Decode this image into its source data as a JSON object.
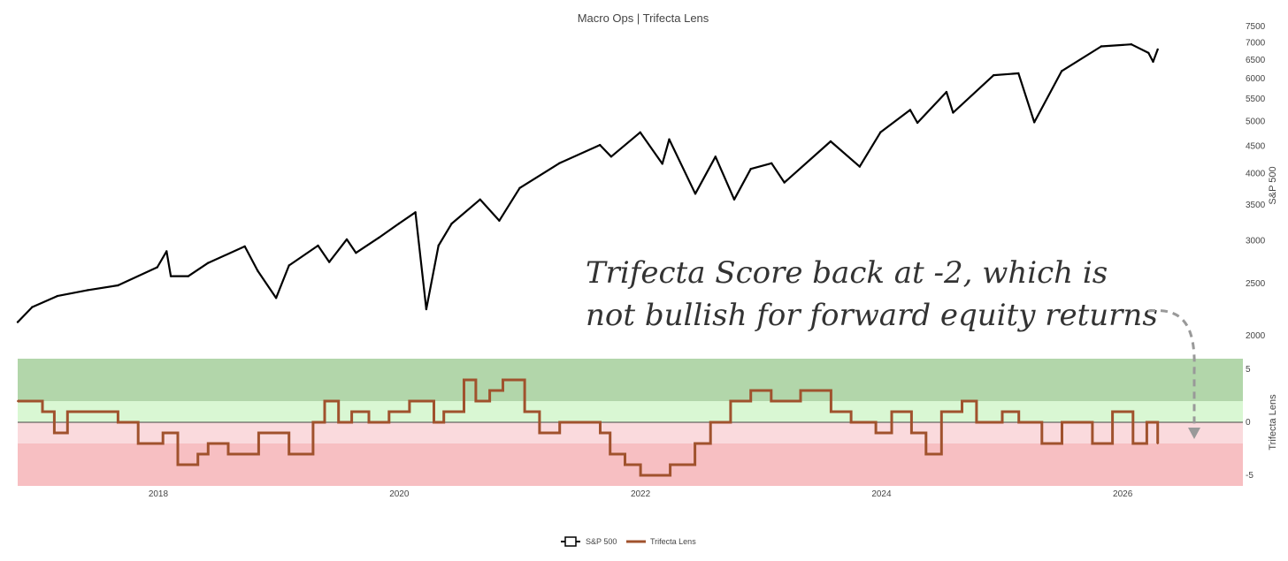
{
  "chart_data": [
    {
      "type": "line",
      "title": "Macro Ops | Trifecta Lens",
      "ylabel": "S&P 500",
      "yscale": "log",
      "ylim": [
        2000,
        7500
      ],
      "y_ticks": [
        2000,
        2500,
        3000,
        3500,
        4000,
        4500,
        5000,
        5500,
        6000,
        6500,
        7000,
        7500
      ],
      "x_ticks": [
        "2018",
        "2020",
        "2022",
        "2024",
        "2026"
      ],
      "xlim": [
        "2016-11-01",
        "2026-12-31"
      ],
      "series": [
        {
          "name": "S&P 500",
          "color": "#000000",
          "points": [
            [
              "2016-11-01",
              2120
            ],
            [
              "2016-12-15",
              2260
            ],
            [
              "2017-03-01",
              2370
            ],
            [
              "2017-06-01",
              2430
            ],
            [
              "2017-09-01",
              2480
            ],
            [
              "2017-12-29",
              2680
            ],
            [
              "2018-01-26",
              2870
            ],
            [
              "2018-02-08",
              2580
            ],
            [
              "2018-04-02",
              2580
            ],
            [
              "2018-06-01",
              2730
            ],
            [
              "2018-09-20",
              2930
            ],
            [
              "2018-10-29",
              2640
            ],
            [
              "2018-12-24",
              2350
            ],
            [
              "2019-02-01",
              2700
            ],
            [
              "2019-04-30",
              2940
            ],
            [
              "2019-06-03",
              2740
            ],
            [
              "2019-07-26",
              3020
            ],
            [
              "2019-08-23",
              2850
            ],
            [
              "2019-10-31",
              3040
            ],
            [
              "2019-12-31",
              3230
            ],
            [
              "2020-02-19",
              3390
            ],
            [
              "2020-03-23",
              2240
            ],
            [
              "2020-04-29",
              2940
            ],
            [
              "2020-06-08",
              3230
            ],
            [
              "2020-09-02",
              3580
            ],
            [
              "2020-10-30",
              3270
            ],
            [
              "2020-12-31",
              3760
            ],
            [
              "2021-04-30",
              4180
            ],
            [
              "2021-08-31",
              4520
            ],
            [
              "2021-10-04",
              4300
            ],
            [
              "2021-12-31",
              4770
            ],
            [
              "2022-03-08",
              4170
            ],
            [
              "2022-03-29",
              4630
            ],
            [
              "2022-06-16",
              3670
            ],
            [
              "2022-08-16",
              4300
            ],
            [
              "2022-10-12",
              3580
            ],
            [
              "2022-12-01",
              4080
            ],
            [
              "2023-02-02",
              4180
            ],
            [
              "2023-03-13",
              3850
            ],
            [
              "2023-07-31",
              4590
            ],
            [
              "2023-10-27",
              4120
            ],
            [
              "2023-12-29",
              4770
            ],
            [
              "2024-03-28",
              5250
            ],
            [
              "2024-04-19",
              4970
            ],
            [
              "2024-07-16",
              5670
            ],
            [
              "2024-08-05",
              5190
            ],
            [
              "2024-12-06",
              6090
            ],
            [
              "2025-02-19",
              6140
            ],
            [
              "2025-04-08",
              4980
            ],
            [
              "2025-06-30",
              6200
            ],
            [
              "2025-10-28",
              6890
            ],
            [
              "2026-01-27",
              6950
            ],
            [
              "2026-03-20",
              6700
            ],
            [
              "2026-04-03",
              6450
            ],
            [
              "2026-04-17",
              6800
            ]
          ]
        }
      ]
    },
    {
      "type": "line",
      "ylabel": "Trifecta Lens",
      "ylim": [
        -6,
        6
      ],
      "y_ticks": [
        -5,
        0,
        5
      ],
      "bands": [
        {
          "from": 2,
          "to": 6,
          "color": "#b2d6aa"
        },
        {
          "from": 0,
          "to": 2,
          "color": "#d9f7d3"
        },
        {
          "from": -2,
          "to": 0,
          "color": "#fadadd"
        },
        {
          "from": -6,
          "to": -2,
          "color": "#f7bfc2"
        }
      ],
      "series": [
        {
          "name": "Trifecta Lens",
          "color": "#a0522d",
          "step": true,
          "points": [
            [
              "2016-11-01",
              2
            ],
            [
              "2017-01-15",
              1
            ],
            [
              "2017-02-20",
              -1
            ],
            [
              "2017-04-01",
              1
            ],
            [
              "2017-09-01",
              0
            ],
            [
              "2017-11-01",
              -2
            ],
            [
              "2018-01-15",
              -1
            ],
            [
              "2018-03-01",
              -4
            ],
            [
              "2018-05-01",
              -3
            ],
            [
              "2018-06-01",
              -2
            ],
            [
              "2018-08-01",
              -3
            ],
            [
              "2018-11-01",
              -1
            ],
            [
              "2019-02-01",
              -3
            ],
            [
              "2019-04-15",
              0
            ],
            [
              "2019-05-20",
              2
            ],
            [
              "2019-07-01",
              0
            ],
            [
              "2019-08-10",
              1
            ],
            [
              "2019-10-01",
              0
            ],
            [
              "2019-12-01",
              1
            ],
            [
              "2020-02-01",
              2
            ],
            [
              "2020-04-15",
              0
            ],
            [
              "2020-05-15",
              1
            ],
            [
              "2020-07-15",
              4
            ],
            [
              "2020-08-20",
              2
            ],
            [
              "2020-10-01",
              3
            ],
            [
              "2020-11-10",
              4
            ],
            [
              "2021-01-15",
              1
            ],
            [
              "2021-03-01",
              -1
            ],
            [
              "2021-05-01",
              0
            ],
            [
              "2021-09-01",
              -1
            ],
            [
              "2021-10-01",
              -3
            ],
            [
              "2021-11-15",
              -4
            ],
            [
              "2022-01-01",
              -5
            ],
            [
              "2022-04-01",
              -4
            ],
            [
              "2022-06-15",
              -2
            ],
            [
              "2022-08-01",
              0
            ],
            [
              "2022-10-01",
              2
            ],
            [
              "2022-12-01",
              3
            ],
            [
              "2023-02-01",
              2
            ],
            [
              "2023-05-01",
              3
            ],
            [
              "2023-08-01",
              1
            ],
            [
              "2023-10-01",
              0
            ],
            [
              "2023-12-15",
              -1
            ],
            [
              "2024-02-01",
              1
            ],
            [
              "2024-04-01",
              -1
            ],
            [
              "2024-05-15",
              -3
            ],
            [
              "2024-07-01",
              1
            ],
            [
              "2024-09-01",
              2
            ],
            [
              "2024-10-15",
              0
            ],
            [
              "2025-01-01",
              1
            ],
            [
              "2025-02-20",
              0
            ],
            [
              "2025-05-01",
              -2
            ],
            [
              "2025-07-01",
              0
            ],
            [
              "2025-10-01",
              -2
            ],
            [
              "2025-12-01",
              1
            ],
            [
              "2026-02-01",
              -2
            ],
            [
              "2026-03-15",
              0
            ],
            [
              "2026-04-17",
              -2
            ]
          ]
        }
      ]
    }
  ],
  "annotation": {
    "line1": "Trifecta Score back at -2, which is",
    "line2": "not bullish for forward equity returns",
    "arrow_color": "#999999"
  },
  "legend": {
    "items": [
      {
        "label": "S&P 500",
        "color": "#000000"
      },
      {
        "label": "Trifecta Lens",
        "color": "#a0522d"
      }
    ]
  }
}
